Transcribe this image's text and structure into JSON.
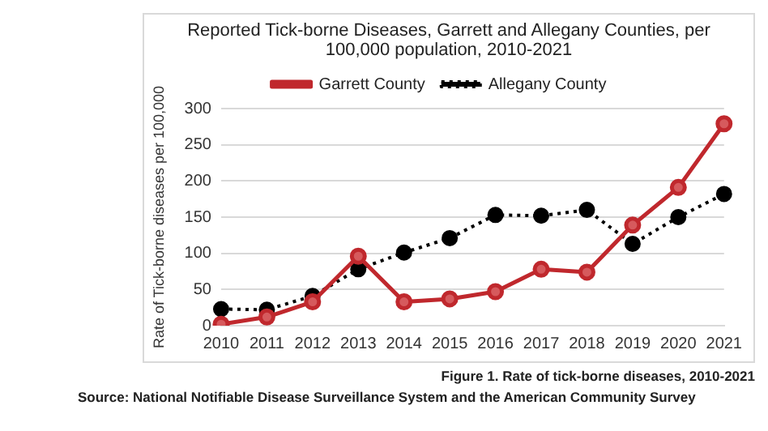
{
  "chart_data": {
    "type": "line",
    "title": "Reported Tick-borne Diseases, Garrett and Allegany Counties, per 100,000 population, 2010-2021",
    "ylabel": "Rate of Tick-borne diseases per 100,000",
    "categories": [
      "2010",
      "2011",
      "2012",
      "2013",
      "2014",
      "2015",
      "2016",
      "2017",
      "2018",
      "2019",
      "2020",
      "2021"
    ],
    "series": [
      {
        "name": "Allegany County",
        "color": "#000000",
        "line_style": "dotted",
        "marker": "circle",
        "values": [
          23,
          22,
          41,
          78,
          101,
          121,
          153,
          152,
          160,
          113,
          150,
          182
        ]
      },
      {
        "name": "Garrett County",
        "color": "#c0282d",
        "line_style": "solid",
        "marker": "circle",
        "values": [
          2,
          12,
          33,
          96,
          33,
          37,
          47,
          78,
          74,
          139,
          191,
          279
        ]
      }
    ],
    "ylim": [
      0,
      300
    ],
    "yticks": [
      0,
      50,
      100,
      150,
      200,
      250,
      300
    ],
    "grid": "y",
    "legend": "top",
    "annotations": [
      "Figure 1. Rate of tick-borne diseases, 2010-2021",
      "Source: National Notifiable Disease Surveillance System and the American Community Survey"
    ]
  }
}
